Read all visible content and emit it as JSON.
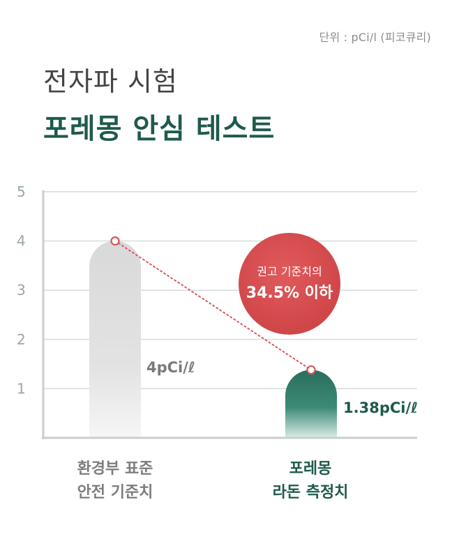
{
  "unit_label": "단위 : pCi/l (피코큐리)",
  "title_line1": "전자파 시험",
  "title_line2": "포레몽 안심 테스트",
  "chart_data": {
    "type": "bar",
    "categories": [
      [
        "환경부 표준",
        "안전 기준치"
      ],
      [
        "포레몽",
        "라돈 측정치"
      ]
    ],
    "values": [
      4,
      1.38
    ],
    "data_labels": [
      "4pCi/ℓ",
      "1.38pCi/ℓ"
    ],
    "ylim": [
      0,
      5
    ],
    "yticks": [
      "1",
      "2",
      "3",
      "4",
      "5"
    ],
    "grid": true,
    "annotation": {
      "line1": "권고 기준치의",
      "line2": "34.5% 이하"
    },
    "colors": {
      "bar1": "#d6d6d6",
      "bar2": "#2b7a68",
      "marker": "#d8565a",
      "bubble": "#d9484b"
    }
  }
}
